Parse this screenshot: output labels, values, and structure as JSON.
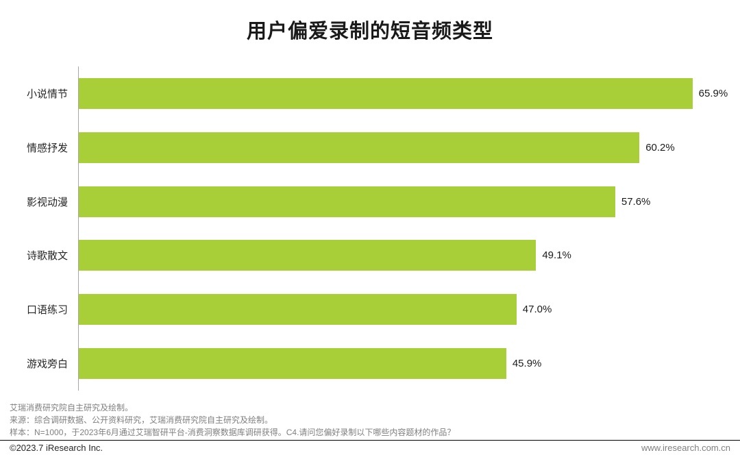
{
  "title": "用户偏爱录制的短音频类型",
  "chart_data": {
    "type": "bar",
    "orientation": "horizontal",
    "title": "用户偏爱录制的短音频类型",
    "categories": [
      "小说情节",
      "情感抒发",
      "影视动漫",
      "诗歌散文",
      "口语练习",
      "游戏旁白"
    ],
    "values": [
      65.9,
      60.2,
      57.6,
      49.1,
      47.0,
      45.9
    ],
    "value_labels": [
      "65.9%",
      "60.2%",
      "57.6%",
      "49.1%",
      "47.0%",
      "45.9%"
    ],
    "xlabel": "",
    "ylabel": "",
    "xlim": [
      0,
      71
    ],
    "grid": false,
    "legend": false,
    "bar_color": "#a8ce38"
  },
  "footnotes": {
    "line1": "艾瑞消费研究院自主研究及绘制。",
    "line2": "来源：综合调研数据、公开资料研究，艾瑞消费研究院自主研究及绘制。",
    "line3": "样本：N=1000，于2023年6月通过艾瑞智研平台-消费洞察数据库调研获得。C4.请问您偏好录制以下哪些内容题材的作品？"
  },
  "footer": {
    "copyright": "©2023.7 iResearch Inc.",
    "website": "www.iresearch.com.cn"
  }
}
